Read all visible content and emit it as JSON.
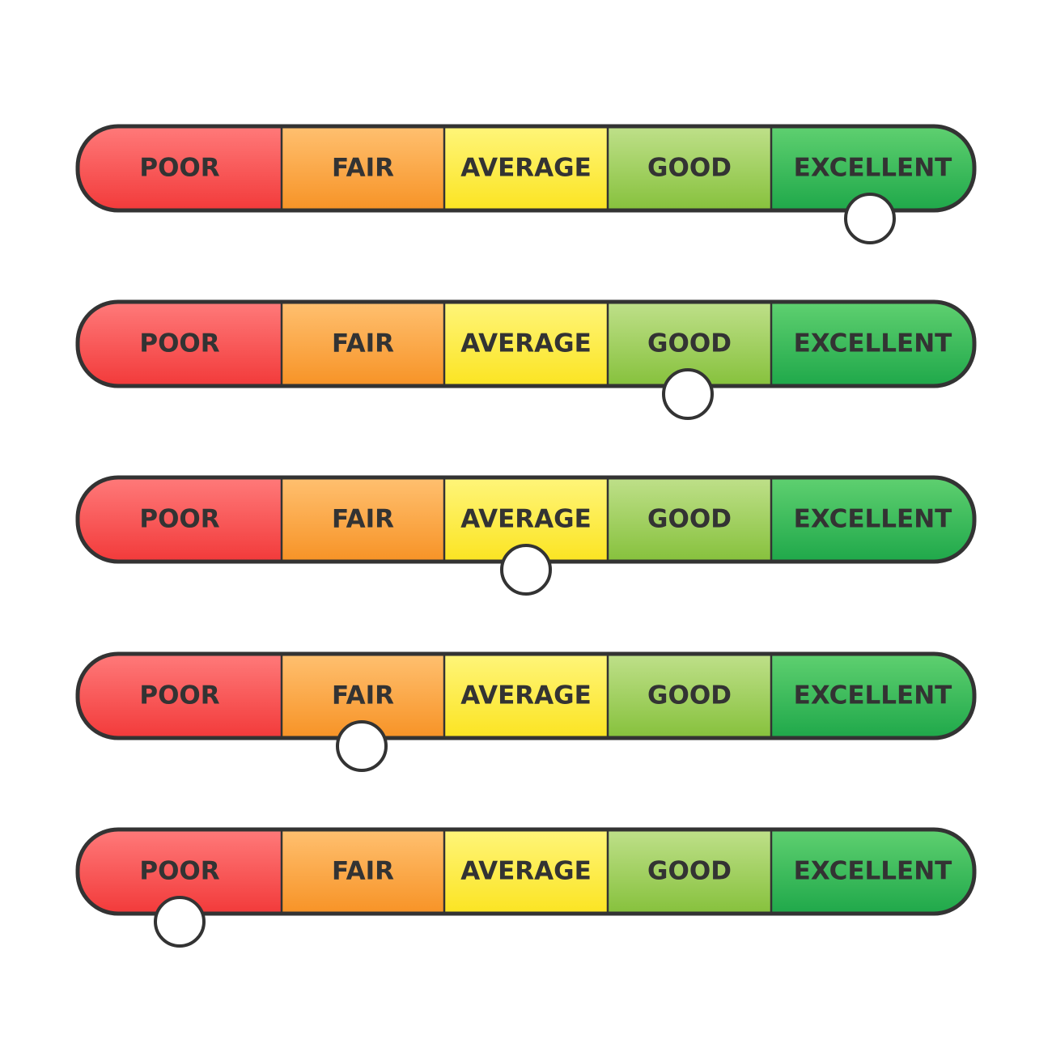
{
  "rows": [
    [
      "POOR",
      "FAIR",
      "AVERAGE",
      "GOOD",
      "EXCELLENT"
    ],
    [
      "POOR",
      "FAIR",
      "AVERAGE",
      "GOOD",
      "EXCELLENT"
    ],
    [
      "POOR",
      "FAIR",
      "AVERAGE",
      "GOOD",
      "EXCELLENT"
    ],
    [
      "POOR",
      "FAIR",
      "AVERAGE",
      "GOOD",
      "EXCELLENT"
    ],
    [
      "POOR",
      "FAIR",
      "AVERAGE",
      "GOOD",
      "EXCELLENT"
    ]
  ]
}
